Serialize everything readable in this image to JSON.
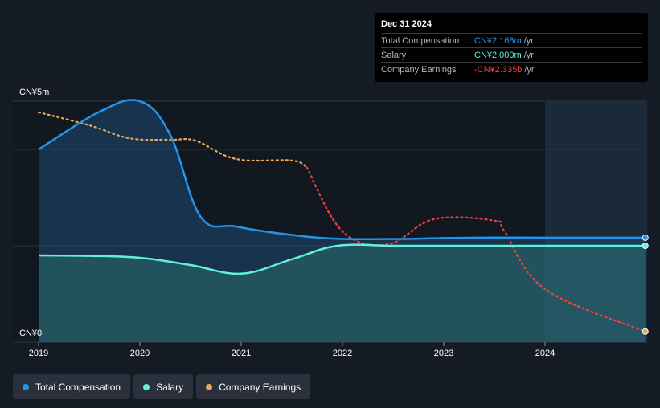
{
  "tooltip": {
    "date": "Dec 31 2024",
    "rows": [
      {
        "label": "Total Compensation",
        "value": "CN¥2.168m",
        "unit": "/yr",
        "color": "#2394e8"
      },
      {
        "label": "Salary",
        "value": "CN¥2.000m",
        "unit": "/yr",
        "color": "#5ff2d8"
      },
      {
        "label": "Company Earnings",
        "value": "-CN¥2.335b",
        "unit": "/yr",
        "color": "#ef4242"
      }
    ]
  },
  "legend": [
    {
      "label": "Total Compensation",
      "color": "#2394e8"
    },
    {
      "label": "Salary",
      "color": "#5ff2d8"
    },
    {
      "label": "Company Earnings",
      "color": "#e8a857"
    }
  ],
  "chart_data": {
    "type": "line",
    "y_axis_labels": [
      "CN¥5m",
      "CN¥0"
    ],
    "x_tick_labels": [
      "2019",
      "2020",
      "2021",
      "2022",
      "2023",
      "2024"
    ],
    "ylim": [
      0,
      5
    ],
    "y_unit": "CN¥m",
    "forecast_shading_from": "2024",
    "series": [
      {
        "name": "Total Compensation",
        "color": "#2394e8",
        "points": [
          [
            2019.0,
            4.0
          ],
          [
            2019.6,
            4.78
          ],
          [
            2020.0,
            5.0
          ],
          [
            2020.3,
            4.3
          ],
          [
            2020.6,
            2.6
          ],
          [
            2020.95,
            2.4
          ],
          [
            2021.4,
            2.25
          ],
          [
            2021.9,
            2.15
          ],
          [
            2022.5,
            2.14
          ],
          [
            2023.0,
            2.16
          ],
          [
            2023.5,
            2.17
          ],
          [
            2024.0,
            2.168
          ],
          [
            2024.99,
            2.168
          ]
        ]
      },
      {
        "name": "Salary",
        "color": "#5ff2d8",
        "points": [
          [
            2019.0,
            1.8
          ],
          [
            2019.5,
            1.79
          ],
          [
            2020.0,
            1.75
          ],
          [
            2020.5,
            1.6
          ],
          [
            2021.0,
            1.42
          ],
          [
            2021.5,
            1.72
          ],
          [
            2021.95,
            2.0
          ],
          [
            2022.5,
            2.0
          ],
          [
            2023.0,
            2.0
          ],
          [
            2024.0,
            2.0
          ],
          [
            2024.99,
            2.0
          ]
        ]
      },
      {
        "name": "Company Earnings",
        "color": "#e8a857",
        "negative_color": "#ef4242",
        "points": [
          [
            2019.0,
            4.77
          ],
          [
            2019.5,
            4.5
          ],
          [
            2019.9,
            4.23
          ],
          [
            2020.3,
            4.2
          ],
          [
            2020.55,
            4.18
          ],
          [
            2020.95,
            3.8
          ],
          [
            2021.5,
            3.77
          ],
          [
            2021.65,
            3.62
          ],
          [
            2022.0,
            2.3
          ],
          [
            2022.45,
            2.03
          ],
          [
            2022.9,
            2.55
          ],
          [
            2023.5,
            2.52
          ],
          [
            2023.6,
            2.3
          ],
          [
            2024.0,
            1.1
          ],
          [
            2024.99,
            0.22
          ]
        ]
      }
    ]
  }
}
